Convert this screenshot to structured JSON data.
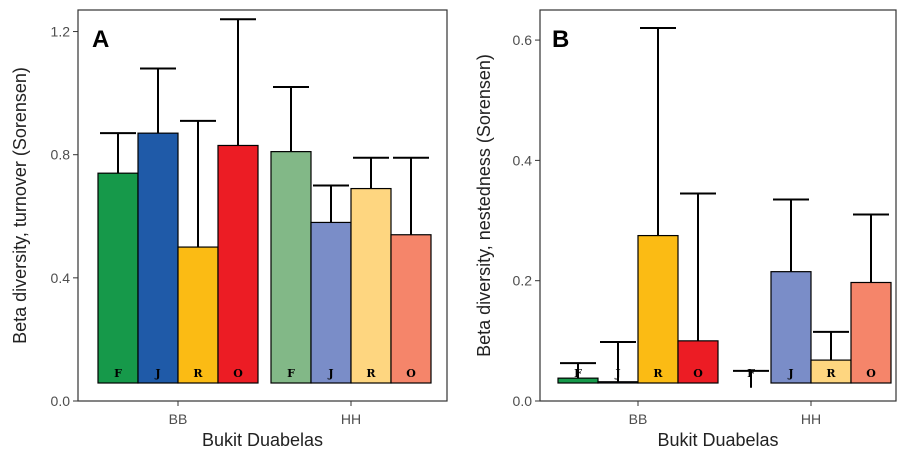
{
  "chart_data": [
    {
      "type": "bar",
      "panel_label": "A",
      "ylabel": "Beta diversity, turnover (Sorensen)",
      "xlabel": "Bukit Duabelas",
      "categories": [
        "BB",
        "HH"
      ],
      "ylim": [
        0,
        1.27
      ],
      "yticks": [
        0.0,
        0.4,
        0.8,
        1.2
      ],
      "ytick_labels": [
        "0.0",
        "0.4",
        "0.8",
        "1.2"
      ],
      "grid": false,
      "error_bars": "upper",
      "groups": [
        {
          "category": "BB",
          "bars": [
            {
              "label": "F",
              "value": 0.74,
              "upper": 0.87,
              "color": "#16994a"
            },
            {
              "label": "J",
              "value": 0.87,
              "upper": 1.08,
              "color": "#1f5aa8"
            },
            {
              "label": "R",
              "value": 0.5,
              "upper": 0.91,
              "color": "#fbbb14"
            },
            {
              "label": "O",
              "value": 0.83,
              "upper": 1.24,
              "color": "#ec1c24"
            }
          ]
        },
        {
          "category": "HH",
          "bars": [
            {
              "label": "F",
              "value": 0.81,
              "upper": 1.02,
              "color": "#82b887"
            },
            {
              "label": "J",
              "value": 0.58,
              "upper": 0.7,
              "color": "#7a8dc8"
            },
            {
              "label": "R",
              "value": 0.69,
              "upper": 0.79,
              "color": "#fed680"
            },
            {
              "label": "O",
              "value": 0.54,
              "upper": 0.79,
              "color": "#f5856a"
            }
          ]
        }
      ]
    },
    {
      "type": "bar",
      "panel_label": "B",
      "ylabel": "Beta diversity, nestedness (Sorensen)",
      "xlabel": "Bukit Duabelas",
      "categories": [
        "BB",
        "HH"
      ],
      "ylim": [
        0,
        0.65
      ],
      "yticks": [
        0.0,
        0.2,
        0.4,
        0.6
      ],
      "ytick_labels": [
        "0.0",
        "0.2",
        "0.4",
        "0.6"
      ],
      "grid": false,
      "error_bars": "upper",
      "groups": [
        {
          "category": "BB",
          "bars": [
            {
              "label": "F",
              "value": 0.038,
              "upper": 0.063,
              "color": "#16994a"
            },
            {
              "label": "J",
              "value": 0.032,
              "upper": 0.098,
              "color": "#1f5aa8"
            },
            {
              "label": "R",
              "value": 0.275,
              "upper": 0.62,
              "color": "#fbbb14"
            },
            {
              "label": "O",
              "value": 0.1,
              "upper": 0.345,
              "color": "#ec1c24"
            }
          ]
        },
        {
          "category": "HH",
          "bars": [
            {
              "label": "F",
              "value": 0.022,
              "upper": 0.05,
              "color": "#82b887"
            },
            {
              "label": "J",
              "value": 0.215,
              "upper": 0.335,
              "color": "#7a8dc8"
            },
            {
              "label": "R",
              "value": 0.068,
              "upper": 0.115,
              "color": "#fed680"
            },
            {
              "label": "O",
              "value": 0.197,
              "upper": 0.31,
              "color": "#f5856a"
            }
          ]
        }
      ]
    }
  ]
}
